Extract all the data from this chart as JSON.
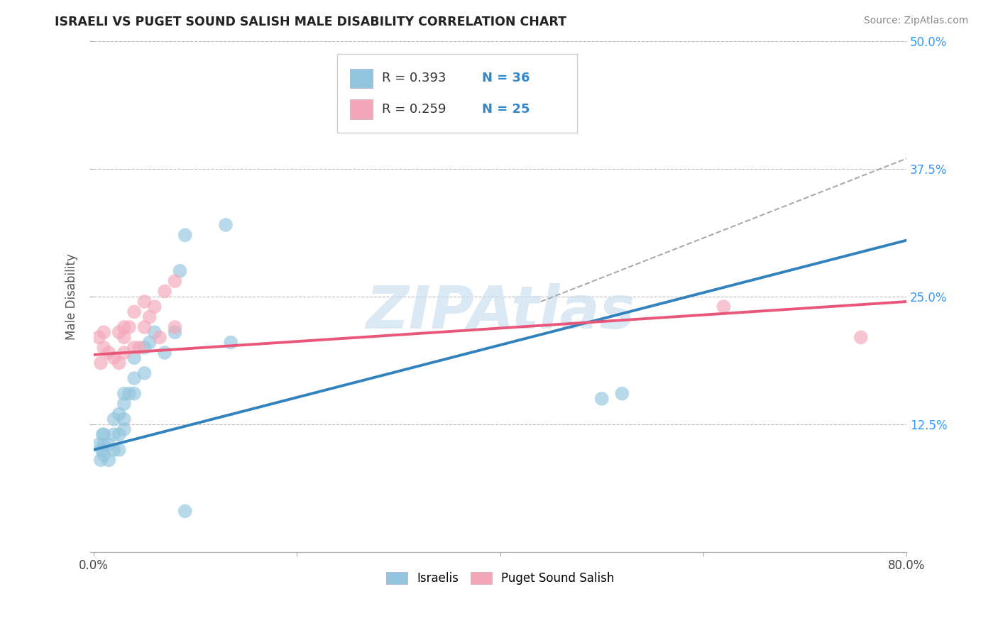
{
  "title": "ISRAELI VS PUGET SOUND SALISH MALE DISABILITY CORRELATION CHART",
  "source": "Source: ZipAtlas.com",
  "ylabel": "Male Disability",
  "xlim": [
    0.0,
    0.8
  ],
  "ylim": [
    0.0,
    0.5
  ],
  "xticks": [
    0.0,
    0.2,
    0.4,
    0.6,
    0.8
  ],
  "yticks": [
    0.0,
    0.125,
    0.25,
    0.375,
    0.5
  ],
  "ytick_labels": [
    "",
    "12.5%",
    "25.0%",
    "37.5%",
    "50.0%"
  ],
  "legend_r1": "R = 0.393",
  "legend_n1": "N = 36",
  "legend_r2": "R = 0.259",
  "legend_n2": "N = 25",
  "color_israeli": "#92c5de",
  "color_puget": "#f4a7b9",
  "color_israeli_line": "#3182bd",
  "color_puget_line": "#e8567a",
  "color_dashed": "#aaaaaa",
  "background_color": "#ffffff",
  "grid_color": "#bbbbbb",
  "israelis_x": [
    0.005,
    0.007,
    0.008,
    0.009,
    0.01,
    0.01,
    0.01,
    0.015,
    0.015,
    0.02,
    0.02,
    0.02,
    0.025,
    0.025,
    0.025,
    0.03,
    0.03,
    0.03,
    0.03,
    0.035,
    0.04,
    0.04,
    0.04,
    0.05,
    0.05,
    0.055,
    0.06,
    0.07,
    0.08,
    0.085,
    0.09,
    0.13,
    0.135,
    0.5,
    0.52,
    0.09
  ],
  "israelis_y": [
    0.105,
    0.09,
    0.1,
    0.115,
    0.095,
    0.105,
    0.115,
    0.09,
    0.105,
    0.1,
    0.115,
    0.13,
    0.1,
    0.115,
    0.135,
    0.12,
    0.13,
    0.145,
    0.155,
    0.155,
    0.155,
    0.17,
    0.19,
    0.175,
    0.2,
    0.205,
    0.215,
    0.195,
    0.215,
    0.275,
    0.31,
    0.32,
    0.205,
    0.15,
    0.155,
    0.04
  ],
  "puget_x": [
    0.005,
    0.007,
    0.01,
    0.01,
    0.015,
    0.02,
    0.025,
    0.025,
    0.03,
    0.03,
    0.03,
    0.035,
    0.04,
    0.04,
    0.045,
    0.05,
    0.05,
    0.055,
    0.06,
    0.065,
    0.07,
    0.08,
    0.08,
    0.62,
    0.755
  ],
  "puget_y": [
    0.21,
    0.185,
    0.2,
    0.215,
    0.195,
    0.19,
    0.185,
    0.215,
    0.195,
    0.21,
    0.22,
    0.22,
    0.2,
    0.235,
    0.2,
    0.245,
    0.22,
    0.23,
    0.24,
    0.21,
    0.255,
    0.22,
    0.265,
    0.24,
    0.21
  ],
  "blue_line_x0": 0.0,
  "blue_line_y0": 0.1,
  "blue_line_x1": 0.8,
  "blue_line_y1": 0.305,
  "pink_line_x0": 0.0,
  "pink_line_y0": 0.193,
  "pink_line_x1": 0.8,
  "pink_line_y1": 0.245,
  "dash_line_x0": 0.44,
  "dash_line_y0": 0.245,
  "dash_line_x1": 0.8,
  "dash_line_y1": 0.385,
  "watermark_text": "ZIPAtlas",
  "watermark_fontsize": 60,
  "watermark_color": "#cce0f0",
  "watermark_alpha": 0.7
}
